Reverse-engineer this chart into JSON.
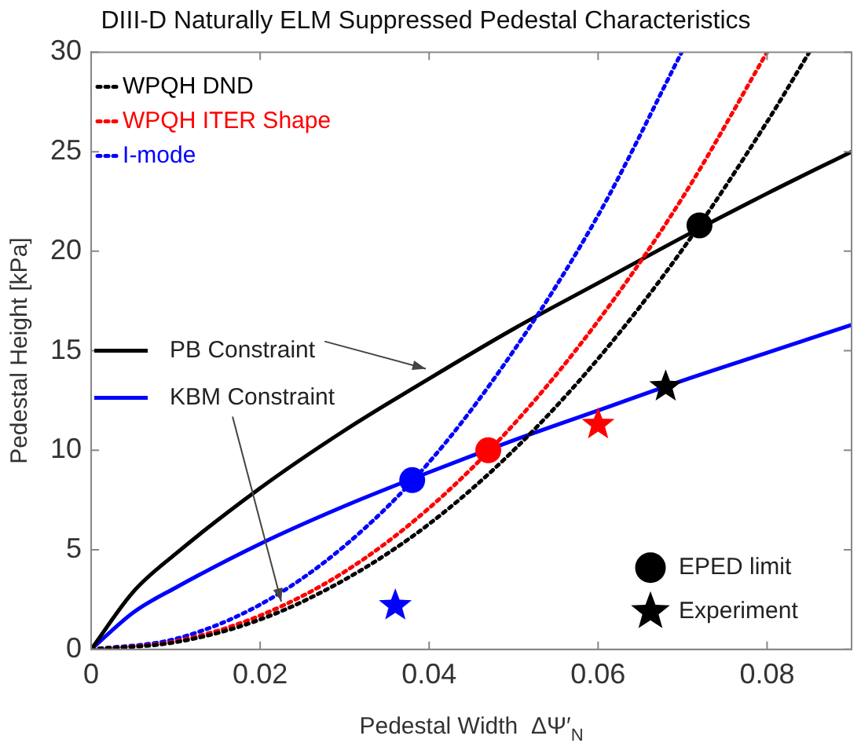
{
  "chart_data": {
    "type": "line",
    "title": "DIII-D Naturally ELM Suppressed Pedestal Characteristics",
    "xlabel": "Pedestal Width  ΔΨ′$_{N}$",
    "ylabel": "Pedestal Height [kPa]",
    "xlim": [
      0,
      0.09
    ],
    "xticks": [
      0,
      0.02,
      0.04,
      0.06,
      0.08
    ],
    "ylim": [
      0,
      30
    ],
    "yticks": [
      0,
      5,
      10,
      15,
      20,
      25,
      30
    ],
    "grid": false,
    "legend": "left",
    "marker": "none",
    "series": [
      {
        "name": "WPQH DND",
        "color": "#000000",
        "line_style": "dotted",
        "x": [
          0,
          0.01,
          0.02,
          0.03,
          0.04,
          0.05,
          0.06,
          0.07,
          0.08,
          0.085
        ],
        "values": [
          0,
          0.36,
          1.5,
          3.5,
          6.3,
          10.0,
          14.6,
          20.1,
          26.5,
          30
        ]
      },
      {
        "name": "WPQH ITER Shape",
        "color": "#ff0000",
        "line_style": "dotted",
        "x": [
          0,
          0.01,
          0.02,
          0.03,
          0.04,
          0.05,
          0.06,
          0.07,
          0.08
        ],
        "values": [
          0,
          0.41,
          1.7,
          3.9,
          7.1,
          11.3,
          16.5,
          22.7,
          30
        ]
      },
      {
        "name": "I-mode",
        "color": "#0000ff",
        "line_style": "dotted",
        "x": [
          0,
          0.01,
          0.02,
          0.03,
          0.04,
          0.05,
          0.06,
          0.0699
        ],
        "values": [
          0,
          0.53,
          2.25,
          5.2,
          9.4,
          15.0,
          21.8,
          30
        ]
      },
      {
        "name": "PB Constraint",
        "color": "#000000",
        "line_style": "solid",
        "x": [
          0,
          0.005,
          0.01,
          0.02,
          0.03,
          0.04,
          0.05,
          0.06,
          0.07,
          0.08,
          0.09
        ],
        "values": [
          0,
          2.9,
          4.8,
          8.1,
          11.0,
          13.6,
          16.1,
          18.4,
          20.7,
          22.9,
          25
        ]
      },
      {
        "name": "KBM Constraint",
        "color": "#0000ff",
        "line_style": "solid",
        "x": [
          0,
          0.005,
          0.01,
          0.02,
          0.03,
          0.04,
          0.05,
          0.06,
          0.07,
          0.08,
          0.09
        ],
        "values": [
          0,
          1.86,
          3.1,
          5.3,
          7.2,
          8.9,
          10.5,
          12.0,
          13.5,
          14.9,
          16.3
        ]
      },
      {
        "name": "EPED limit",
        "type": "scatter",
        "marker": "circle",
        "color": "#000000",
        "colors": [
          "#0000ff",
          "#ff0000",
          "#000000"
        ],
        "x": [
          0.038,
          0.047,
          0.072
        ],
        "values": [
          8.5,
          10.0,
          21.3
        ]
      },
      {
        "name": "Experiment",
        "type": "scatter",
        "marker": "star",
        "color": "#000000",
        "colors": [
          "#0000ff",
          "#ff0000",
          "#000000"
        ],
        "x": [
          0.036,
          0.06,
          0.068
        ],
        "values": [
          2.2,
          11.3,
          13.2
        ]
      }
    ]
  }
}
